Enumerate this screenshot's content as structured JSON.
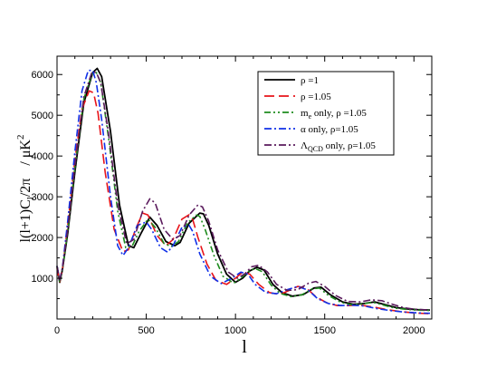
{
  "chart_data": {
    "type": "line",
    "xlabel": "l",
    "ylabel": "l(l+1)C_l/2π   / μK²",
    "ylabel_parts": {
      "main": "l(l+1)C",
      "sub": "l",
      "after": "/2π",
      "unit_prefix": "/  μK",
      "unit_sup": "2"
    },
    "xlim": [
      0,
      2100
    ],
    "ylim": [
      0,
      6450
    ],
    "x_ticks": [
      0,
      500,
      1000,
      1500,
      2000
    ],
    "y_ticks": [
      1000,
      2000,
      3000,
      4000,
      5000,
      6000
    ],
    "x_tick_labels": [
      "0",
      "500",
      "1000",
      "1500",
      "2000"
    ],
    "y_tick_labels": [
      "1000",
      "2000",
      "3000",
      "4000",
      "5000",
      "6000"
    ],
    "grid": false,
    "legend_position": "top-right",
    "series": [
      {
        "name": "ρ =1",
        "label_parts": {
          "pre": "ρ",
          "sub": "",
          "post": " =1"
        },
        "color": "#000000",
        "dash": "solid",
        "x": [
          0,
          15,
          30,
          60,
          100,
          150,
          200,
          225,
          250,
          300,
          350,
          400,
          430,
          470,
          520,
          560,
          610,
          660,
          690,
          740,
          800,
          820,
          850,
          900,
          950,
          1000,
          1040,
          1080,
          1120,
          1160,
          1210,
          1260,
          1320,
          1380,
          1440,
          1480,
          1530,
          1600,
          1660,
          1720,
          1780,
          1840,
          1900,
          1960,
          2020,
          2090
        ],
        "y": [
          1300,
          900,
          1200,
          2100,
          3600,
          5300,
          6050,
          6150,
          5950,
          4600,
          2800,
          1800,
          1750,
          2100,
          2500,
          2300,
          1900,
          1800,
          1880,
          2350,
          2600,
          2580,
          2300,
          1600,
          1100,
          900,
          1000,
          1180,
          1270,
          1200,
          850,
          650,
          560,
          600,
          760,
          780,
          600,
          420,
          360,
          380,
          420,
          350,
          280,
          250,
          230,
          220
        ]
      },
      {
        "name": "ρ =1.05",
        "label_parts": {
          "pre": "ρ",
          "sub": "",
          "post": " =1.05"
        },
        "color": "#e8141a",
        "dash": "long-dash",
        "x": [
          0,
          15,
          30,
          60,
          100,
          140,
          180,
          205,
          230,
          270,
          320,
          370,
          400,
          440,
          480,
          510,
          560,
          610,
          650,
          700,
          740,
          760,
          790,
          840,
          890,
          950,
          1000,
          1040,
          1080,
          1130,
          1190,
          1250,
          1300,
          1350,
          1400,
          1450,
          1510,
          1570,
          1630,
          1700,
          1780,
          1850,
          1930,
          2000,
          2090
        ],
        "y": [
          1250,
          900,
          1200,
          2300,
          3900,
          5150,
          5600,
          5550,
          5050,
          3600,
          2200,
          1650,
          1700,
          2200,
          2600,
          2550,
          2050,
          1800,
          1950,
          2450,
          2560,
          2450,
          2000,
          1350,
          950,
          850,
          1000,
          1150,
          1100,
          850,
          650,
          600,
          700,
          800,
          750,
          550,
          400,
          330,
          330,
          340,
          290,
          230,
          180,
          150,
          130
        ]
      },
      {
        "name": "m_e only, ρ =1.05",
        "label_parts": {
          "pre": "m",
          "sub": "e",
          "post": " only, ρ =1.05"
        },
        "color": "#1e8c1e",
        "dash": "dash-dot-dot",
        "x": [
          0,
          15,
          30,
          60,
          100,
          150,
          195,
          220,
          245,
          290,
          340,
          385,
          420,
          460,
          510,
          550,
          600,
          640,
          680,
          730,
          780,
          800,
          830,
          880,
          930,
          990,
          1030,
          1070,
          1110,
          1150,
          1200,
          1250,
          1310,
          1370,
          1430,
          1470,
          1520,
          1590,
          1650,
          1710,
          1770,
          1830,
          1890,
          1950,
          2010,
          2090
        ],
        "y": [
          1280,
          900,
          1200,
          2150,
          3700,
          5400,
          6000,
          6050,
          5800,
          4400,
          2650,
          1750,
          1780,
          2150,
          2450,
          2250,
          1850,
          1780,
          1900,
          2350,
          2550,
          2520,
          2200,
          1550,
          1050,
          880,
          1000,
          1160,
          1240,
          1160,
          830,
          630,
          550,
          590,
          740,
          760,
          580,
          410,
          350,
          370,
          410,
          340,
          270,
          240,
          220,
          210
        ]
      },
      {
        "name": "α only, ρ=1.05",
        "label_parts": {
          "pre": "α",
          "sub": "",
          "post": " only, ρ=1.05"
        },
        "color": "#1030e8",
        "dash": "dash-dot",
        "x": [
          0,
          15,
          30,
          60,
          100,
          140,
          175,
          200,
          220,
          250,
          300,
          340,
          370,
          400,
          450,
          500,
          530,
          580,
          620,
          650,
          700,
          740,
          760,
          800,
          860,
          920,
          980,
          1030,
          1070,
          1110,
          1170,
          1230,
          1290,
          1350,
          1410,
          1460,
          1520,
          1590,
          1650,
          1720,
          1800,
          1880,
          1950,
          2020,
          2090
        ],
        "y": [
          1300,
          950,
          1250,
          2400,
          4100,
          5600,
          6100,
          6100,
          5800,
          4900,
          3000,
          1800,
          1560,
          1750,
          2300,
          2380,
          2200,
          1750,
          1640,
          1800,
          2250,
          2300,
          2150,
          1600,
          1050,
          870,
          1000,
          1150,
          1100,
          850,
          650,
          620,
          720,
          800,
          700,
          500,
          380,
          330,
          340,
          320,
          250,
          200,
          170,
          150,
          140
        ]
      },
      {
        "name": "Λ_QCD only, ρ=1.05",
        "label_parts": {
          "pre": "Λ",
          "sub": "QCD",
          "post": " only, ρ=1.05"
        },
        "color": "#5a1a5c",
        "dash": "dash-dot",
        "x": [
          0,
          15,
          30,
          60,
          100,
          150,
          195,
          220,
          245,
          290,
          340,
          390,
          430,
          480,
          520,
          550,
          600,
          650,
          690,
          740,
          790,
          815,
          850,
          900,
          960,
          1010,
          1050,
          1090,
          1130,
          1180,
          1230,
          1290,
          1350,
          1410,
          1450,
          1500,
          1560,
          1630,
          1700,
          1760,
          1820,
          1880,
          1940,
          2000,
          2090
        ],
        "y": [
          1300,
          950,
          1250,
          2200,
          3750,
          5450,
          6050,
          6050,
          5800,
          4500,
          2800,
          1850,
          1950,
          2650,
          2950,
          2850,
          2200,
          1950,
          2050,
          2550,
          2800,
          2750,
          2400,
          1700,
          1150,
          1000,
          1100,
          1280,
          1320,
          1150,
          850,
          700,
          720,
          880,
          920,
          800,
          580,
          430,
          420,
          470,
          450,
          360,
          280,
          240,
          220
        ]
      }
    ]
  }
}
